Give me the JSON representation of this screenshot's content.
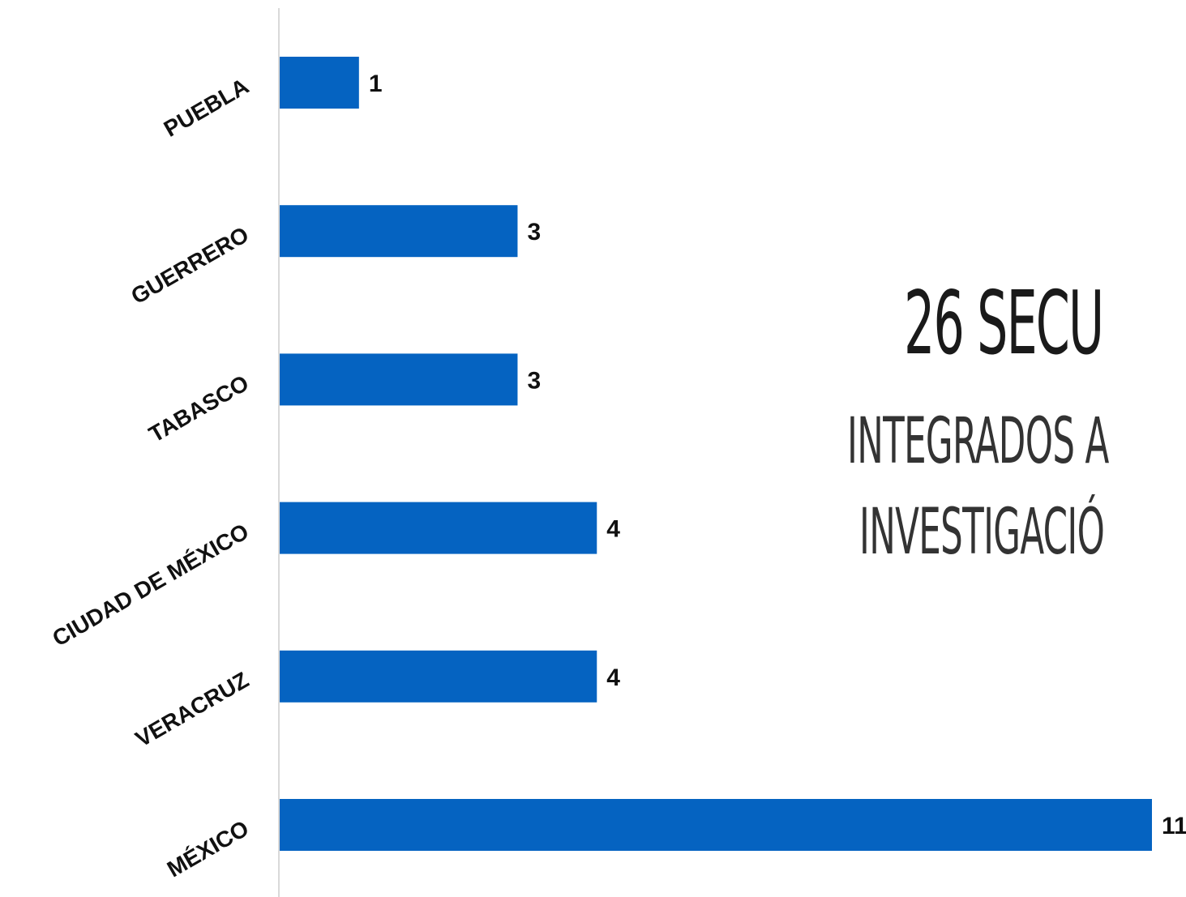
{
  "chart_data": {
    "type": "bar",
    "orientation": "horizontal",
    "categories": [
      "PUEBLA",
      "GUERRERO",
      "TABASCO",
      "CIUDAD DE MÉXICO",
      "VERACRUZ",
      "MÉXICO"
    ],
    "values": [
      1,
      3,
      3,
      4,
      4,
      11
    ],
    "data_labels": [
      "1",
      "3",
      "3",
      "4",
      "4",
      "11"
    ],
    "xlim": [
      0,
      11
    ],
    "title": "",
    "xlabel": "",
    "ylabel": "",
    "grid": false,
    "bar_color": "#0563C1"
  },
  "headline": "26 SECU",
  "subline_1": "INTEGRADOS A",
  "subline_2": "INVESTIGACIÓ"
}
